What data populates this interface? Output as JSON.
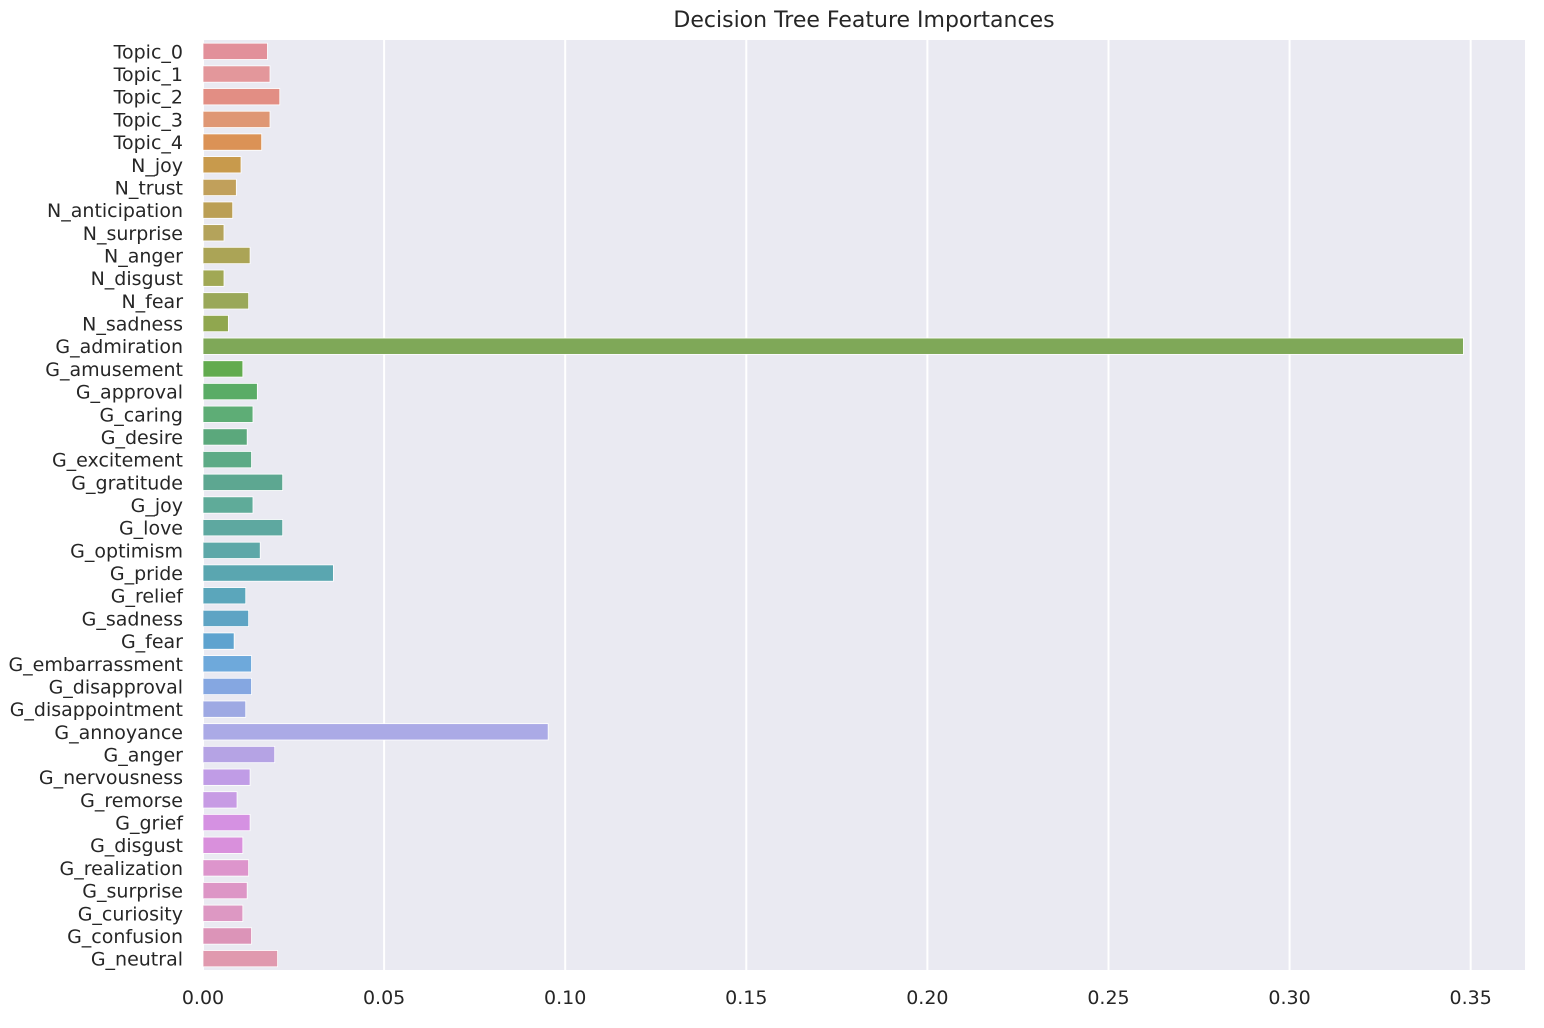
{
  "chart_data": {
    "type": "bar",
    "orientation": "horizontal",
    "title": "Decision Tree Feature Importances",
    "xlabel": "",
    "ylabel": "",
    "xlim": [
      0,
      0.365
    ],
    "xticks": [
      "0.00",
      "0.05",
      "0.10",
      "0.15",
      "0.20",
      "0.25",
      "0.30",
      "0.35"
    ],
    "grid": true,
    "legend": "none",
    "background_color": "#eaeaf2",
    "categories": [
      "Topic_0",
      "Topic_1",
      "Topic_2",
      "Topic_3",
      "Topic_4",
      "N_joy",
      "N_trust",
      "N_anticipation",
      "N_surprise",
      "N_anger",
      "N_disgust",
      "N_fear",
      "N_sadness",
      "G_admiration",
      "G_amusement",
      "G_approval",
      "G_caring",
      "G_desire",
      "G_excitement",
      "G_gratitude",
      "G_joy",
      "G_love",
      "G_optimism",
      "G_pride",
      "G_relief",
      "G_sadness",
      "G_fear",
      "G_embarrassment",
      "G_disapproval",
      "G_disappointment",
      "G_annoyance",
      "G_anger",
      "G_nervousness",
      "G_remorse",
      "G_grief",
      "G_disgust",
      "G_realization",
      "G_surprise",
      "G_curiosity",
      "G_confusion",
      "G_neutral"
    ],
    "values": [
      0.0178,
      0.0185,
      0.0212,
      0.0185,
      0.0162,
      0.0105,
      0.0092,
      0.0082,
      0.0058,
      0.013,
      0.0058,
      0.0126,
      0.007,
      0.348,
      0.011,
      0.015,
      0.0138,
      0.0122,
      0.0134,
      0.022,
      0.0138,
      0.022,
      0.0158,
      0.036,
      0.0118,
      0.0126,
      0.0086,
      0.0134,
      0.0134,
      0.0118,
      0.0953,
      0.0198,
      0.013,
      0.0094,
      0.013,
      0.011,
      0.0126,
      0.0122,
      0.011,
      0.0134,
      0.0206
    ],
    "colors": [
      "#e2909a",
      "#e3979b",
      "#e28e84",
      "#df9774",
      "#db9256",
      "#c89a4c",
      "#c1a05b",
      "#bb9f55",
      "#b4a35b",
      "#aba456",
      "#a1a855",
      "#9aa859",
      "#90a74f",
      "#7fa858",
      "#62ab4f",
      "#5aac66",
      "#5ead76",
      "#5ba87c",
      "#5dab86",
      "#5da791",
      "#5fab99",
      "#5ea8a0",
      "#5da8a8",
      "#5aa6b0",
      "#5ba6bb",
      "#5ea4c4",
      "#5ea3cf",
      "#6ea9db",
      "#85a7e1",
      "#9ea9e3",
      "#abaae6",
      "#b5a3e4",
      "#c09ce6",
      "#c79be4",
      "#d591e2",
      "#d990dc",
      "#dd95cc",
      "#dd96c6",
      "#dd98c3",
      "#dc94b8",
      "#e099ae"
    ]
  }
}
